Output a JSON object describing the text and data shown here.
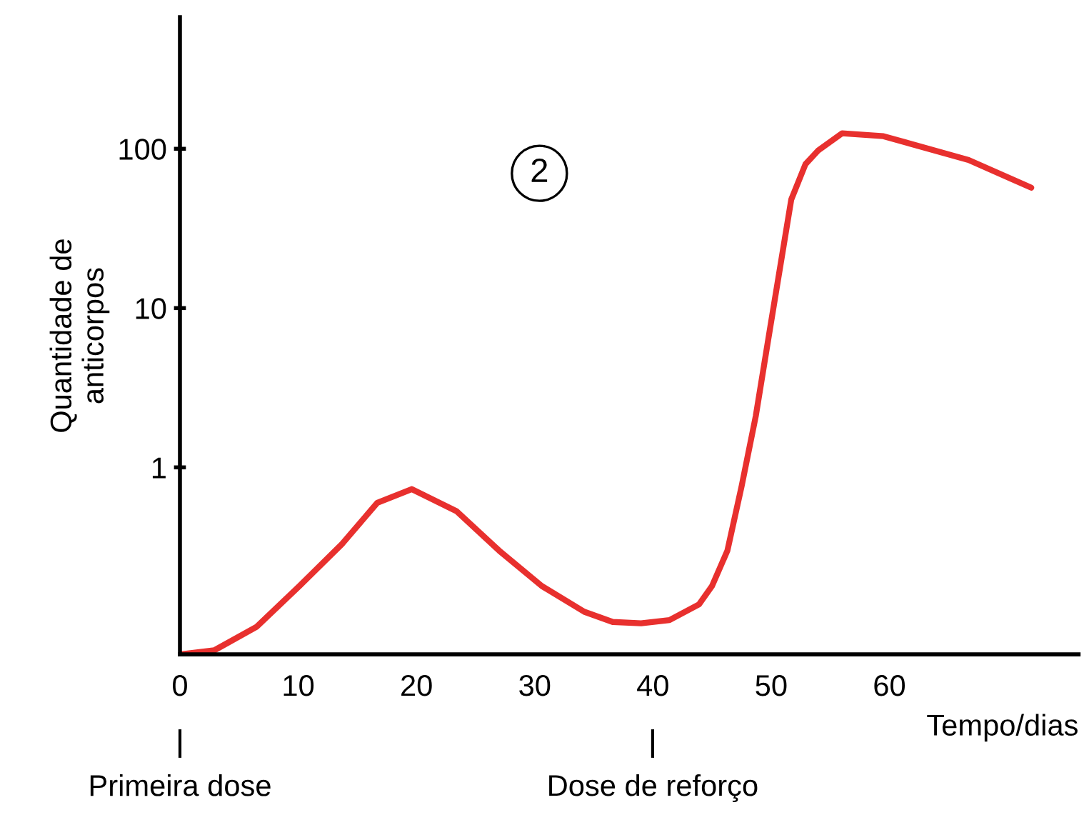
{
  "chart_data": {
    "type": "line",
    "xlabel": "Tempo/dias",
    "ylabel": "Quantidade de\nanticorpos",
    "log": true,
    "xlim": [
      0,
      76
    ],
    "xticks": [
      0,
      10,
      20,
      30,
      40,
      50,
      60
    ],
    "ylim": [
      0.067,
      670
    ],
    "yticks": [
      1,
      10,
      100
    ],
    "grid": false,
    "legend": false,
    "marker": "none",
    "line_style": "solid",
    "series": [
      {
        "color": "#e8302e",
        "x": [
          0,
          2.9,
          6.5,
          10.1,
          13.7,
          16.7,
          19.6,
          23.4,
          27,
          30.6,
          34.2,
          36.6,
          39,
          41.4,
          43.9,
          45,
          46.3,
          47.5,
          48.7,
          49.9,
          51.7,
          52.9,
          54,
          56,
          59.5,
          66.7,
          72
        ],
        "values": [
          0.067,
          0.071,
          0.1,
          0.18,
          0.33,
          0.6,
          0.73,
          0.53,
          0.3,
          0.18,
          0.124,
          0.107,
          0.105,
          0.11,
          0.138,
          0.18,
          0.3,
          0.76,
          2.1,
          7.4,
          48,
          80,
          98,
          125,
          120,
          85,
          57
        ]
      }
    ],
    "annotations": [
      "Primeira dose",
      "Dose de reforço",
      "2"
    ]
  }
}
